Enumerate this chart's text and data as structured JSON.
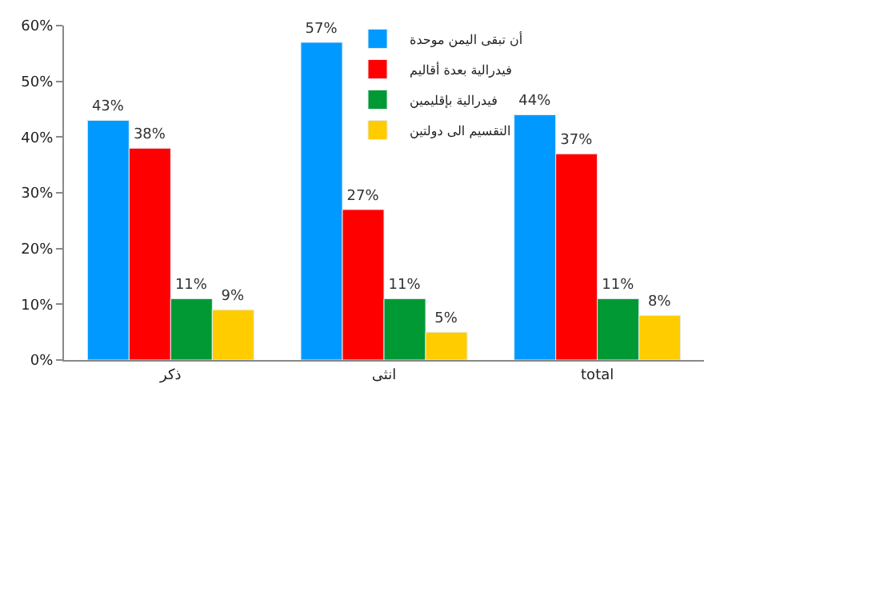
{
  "chart_data": {
    "type": "bar",
    "categories": [
      "ذكر",
      "انثى",
      "total"
    ],
    "series": [
      {
        "name": "أن تبقى اليمن موحدة",
        "color": "#0099ff",
        "values": [
          43,
          57,
          44
        ],
        "value_labels": [
          "43%",
          "57%",
          "44%"
        ]
      },
      {
        "name": "فيدرالية بعدة أقاليم",
        "color": "#ff0000",
        "values": [
          38,
          27,
          37
        ],
        "value_labels": [
          "38%",
          "27%",
          "37%"
        ]
      },
      {
        "name": "فيدرالية بإقليمين",
        "color": "#009933",
        "values": [
          11,
          11,
          11
        ],
        "value_labels": [
          "11%",
          "11%",
          "11%"
        ]
      },
      {
        "name": "التقسيم الى دولتين",
        "color": "#ffcc00",
        "values": [
          9,
          5,
          8
        ],
        "value_labels": [
          "9%",
          "5%",
          "8%"
        ]
      }
    ],
    "ylim": [
      0,
      60
    ],
    "yticks": [
      {
        "value": 0,
        "label": "0%"
      },
      {
        "value": 10,
        "label": "10%"
      },
      {
        "value": 20,
        "label": "20%"
      },
      {
        "value": 30,
        "label": "30%"
      },
      {
        "value": 40,
        "label": "40%"
      },
      {
        "value": 50,
        "label": "50%"
      },
      {
        "value": 60,
        "label": "60%"
      }
    ],
    "legend": "top"
  }
}
